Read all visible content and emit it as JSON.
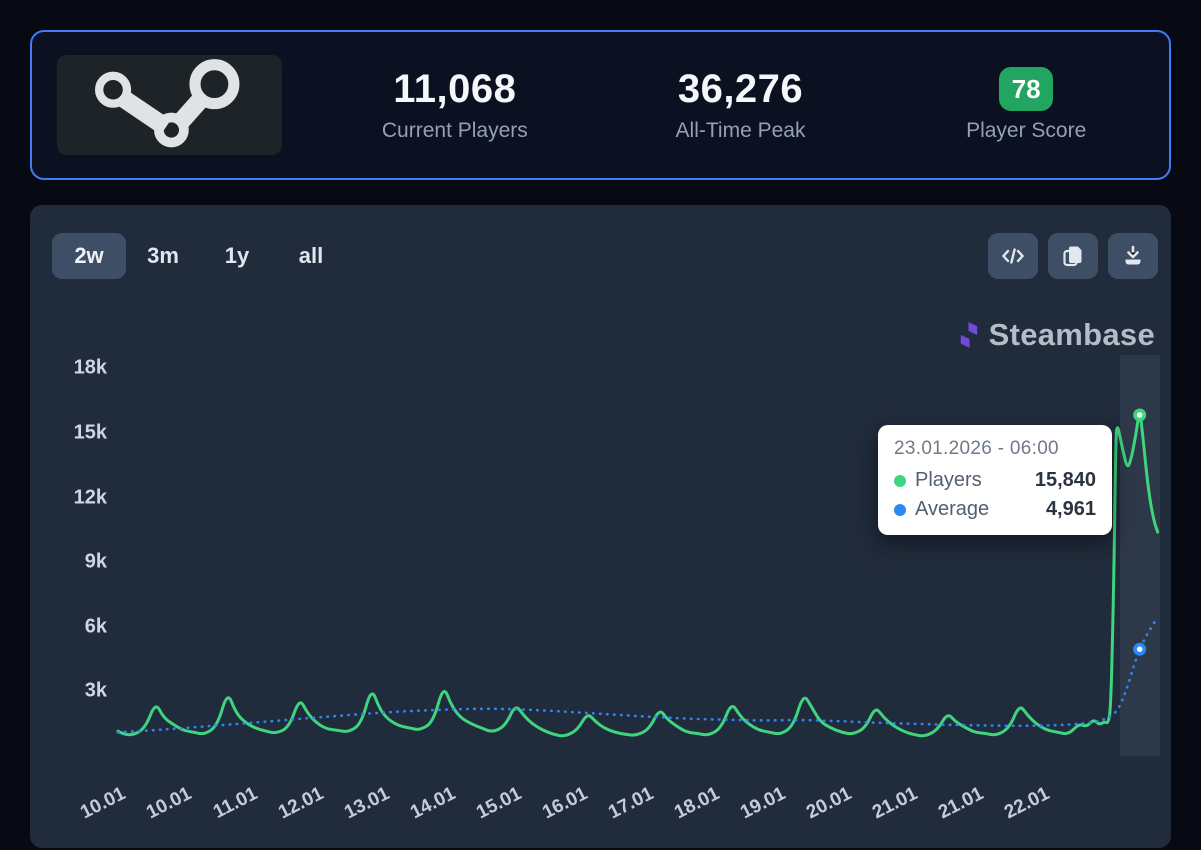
{
  "stats_card": {
    "current_players": {
      "value": "11,068",
      "label": "Current Players"
    },
    "all_time_peak": {
      "value": "36,276",
      "label": "All-Time Peak"
    },
    "player_score": {
      "value": "78",
      "label": "Player Score",
      "badge_color": "#21a561"
    }
  },
  "toolbar": {
    "tabs": [
      {
        "label": "2w",
        "active": true
      },
      {
        "label": "3m",
        "active": false
      },
      {
        "label": "1y",
        "active": false
      },
      {
        "label": "all",
        "active": false
      }
    ],
    "action_icons": [
      "embed-code",
      "copy",
      "download"
    ]
  },
  "watermark": {
    "brand": "Steambase",
    "logo_color": "#6f4bd8"
  },
  "tooltip": {
    "date": "23.01.2026 - 06:00",
    "rows": [
      {
        "label": "Players",
        "value": "15,840",
        "color": "#3fd47e"
      },
      {
        "label": "Average",
        "value": "4,961",
        "color": "#2f86f6"
      }
    ]
  },
  "chart_data": {
    "type": "line",
    "title": "",
    "xlabel": "",
    "ylabel": "",
    "grid": false,
    "legend_position": "tooltip",
    "x_ticks": [
      "10.01",
      "10.01",
      "11.01",
      "12.01",
      "13.01",
      "14.01",
      "15.01",
      "16.01",
      "17.01",
      "18.01",
      "19.01",
      "20.01",
      "21.01",
      "21.01",
      "22.01"
    ],
    "y_ticks": [
      "18k",
      "15k",
      "12k",
      "9k",
      "6k",
      "3k"
    ],
    "y_tick_values_k": [
      18,
      15,
      12,
      9,
      6,
      3
    ],
    "ylim_k": [
      0,
      19.5
    ],
    "series": [
      {
        "name": "Players",
        "color": "#3fd47e",
        "style": "solid",
        "points_day_k": [
          [
            0,
            1.15
          ],
          [
            0.05,
            1.05
          ],
          [
            0.2,
            0.95
          ],
          [
            0.38,
            1.3
          ],
          [
            0.52,
            2.5
          ],
          [
            0.63,
            1.8
          ],
          [
            0.75,
            1.5
          ],
          [
            0.9,
            1.2
          ],
          [
            1.05,
            1.1
          ],
          [
            1.2,
            1.0
          ],
          [
            1.38,
            1.4
          ],
          [
            1.52,
            3.0
          ],
          [
            1.63,
            2.05
          ],
          [
            1.75,
            1.6
          ],
          [
            1.9,
            1.3
          ],
          [
            2.05,
            1.15
          ],
          [
            2.2,
            1.05
          ],
          [
            2.38,
            1.35
          ],
          [
            2.52,
            2.7
          ],
          [
            2.63,
            2.0
          ],
          [
            2.75,
            1.55
          ],
          [
            2.9,
            1.25
          ],
          [
            3.05,
            1.2
          ],
          [
            3.2,
            1.1
          ],
          [
            3.38,
            1.5
          ],
          [
            3.52,
            3.2
          ],
          [
            3.63,
            2.2
          ],
          [
            3.75,
            1.7
          ],
          [
            3.9,
            1.4
          ],
          [
            4.05,
            1.3
          ],
          [
            4.2,
            1.2
          ],
          [
            4.38,
            1.6
          ],
          [
            4.52,
            3.3
          ],
          [
            4.63,
            2.35
          ],
          [
            4.75,
            1.8
          ],
          [
            4.9,
            1.5
          ],
          [
            5.05,
            1.3
          ],
          [
            5.2,
            1.1
          ],
          [
            5.38,
            1.4
          ],
          [
            5.52,
            2.4
          ],
          [
            5.63,
            1.9
          ],
          [
            5.75,
            1.5
          ],
          [
            5.9,
            1.2
          ],
          [
            6.05,
            1.0
          ],
          [
            6.2,
            0.9
          ],
          [
            6.38,
            1.2
          ],
          [
            6.52,
            2.0
          ],
          [
            6.63,
            1.6
          ],
          [
            6.75,
            1.3
          ],
          [
            6.9,
            1.1
          ],
          [
            7.05,
            1.0
          ],
          [
            7.2,
            0.95
          ],
          [
            7.38,
            1.25
          ],
          [
            7.52,
            2.2
          ],
          [
            7.63,
            1.7
          ],
          [
            7.75,
            1.4
          ],
          [
            7.9,
            1.1
          ],
          [
            8.05,
            1.05
          ],
          [
            8.2,
            0.95
          ],
          [
            8.38,
            1.3
          ],
          [
            8.52,
            2.5
          ],
          [
            8.63,
            1.9
          ],
          [
            8.75,
            1.5
          ],
          [
            8.9,
            1.2
          ],
          [
            9.05,
            1.1
          ],
          [
            9.2,
            1.0
          ],
          [
            9.38,
            1.4
          ],
          [
            9.52,
            2.9
          ],
          [
            9.63,
            2.3
          ],
          [
            9.75,
            1.6
          ],
          [
            9.9,
            1.3
          ],
          [
            10.05,
            1.1
          ],
          [
            10.2,
            1.0
          ],
          [
            10.38,
            1.3
          ],
          [
            10.52,
            2.3
          ],
          [
            10.63,
            1.8
          ],
          [
            10.75,
            1.45
          ],
          [
            10.9,
            1.15
          ],
          [
            11.05,
            1.0
          ],
          [
            11.2,
            0.9
          ],
          [
            11.38,
            1.2
          ],
          [
            11.52,
            2.0
          ],
          [
            11.63,
            1.6
          ],
          [
            11.75,
            1.35
          ],
          [
            11.9,
            1.1
          ],
          [
            12.05,
            1.05
          ],
          [
            12.2,
            0.95
          ],
          [
            12.38,
            1.3
          ],
          [
            12.52,
            2.4
          ],
          [
            12.63,
            1.9
          ],
          [
            12.75,
            1.5
          ],
          [
            12.9,
            1.2
          ],
          [
            13.05,
            1.1
          ],
          [
            13.2,
            1.0
          ],
          [
            13.35,
            1.5
          ],
          [
            13.45,
            1.35
          ],
          [
            13.55,
            1.7
          ],
          [
            13.63,
            1.45
          ],
          [
            13.7,
            1.6
          ],
          [
            13.75,
            1.5
          ],
          [
            13.79,
            2.2
          ],
          [
            13.83,
            8.0
          ],
          [
            13.86,
            15.0
          ],
          [
            13.88,
            15.3
          ],
          [
            13.9,
            15.1
          ],
          [
            13.95,
            14.3
          ],
          [
            14.02,
            13.3
          ],
          [
            14.08,
            13.9
          ],
          [
            14.14,
            15.0
          ],
          [
            14.17,
            15.7
          ],
          [
            14.19,
            15.84
          ],
          [
            14.21,
            15.6
          ],
          [
            14.26,
            14.0
          ],
          [
            14.31,
            12.4
          ],
          [
            14.38,
            11.0
          ],
          [
            14.44,
            10.4
          ]
        ]
      },
      {
        "name": "Average",
        "color": "#2f86f6",
        "style": "dotted",
        "points_day_k": [
          [
            0,
            1.1
          ],
          [
            0.5,
            1.2
          ],
          [
            1,
            1.32
          ],
          [
            1.5,
            1.45
          ],
          [
            2,
            1.58
          ],
          [
            2.5,
            1.72
          ],
          [
            3,
            1.85
          ],
          [
            3.5,
            1.98
          ],
          [
            4,
            2.08
          ],
          [
            4.5,
            2.15
          ],
          [
            5,
            2.2
          ],
          [
            5.5,
            2.18
          ],
          [
            6,
            2.1
          ],
          [
            6.5,
            2.0
          ],
          [
            7,
            1.9
          ],
          [
            7.5,
            1.8
          ],
          [
            8,
            1.72
          ],
          [
            8.5,
            1.68
          ],
          [
            9,
            1.65
          ],
          [
            9.5,
            1.68
          ],
          [
            10,
            1.62
          ],
          [
            10.5,
            1.55
          ],
          [
            11,
            1.5
          ],
          [
            11.5,
            1.45
          ],
          [
            12,
            1.42
          ],
          [
            12.5,
            1.4
          ],
          [
            13,
            1.42
          ],
          [
            13.3,
            1.48
          ],
          [
            13.6,
            1.58
          ],
          [
            13.8,
            1.85
          ],
          [
            13.9,
            2.2
          ],
          [
            14,
            3.0
          ],
          [
            14.1,
            4.1
          ],
          [
            14.19,
            4.961
          ],
          [
            14.3,
            5.7
          ],
          [
            14.44,
            6.45
          ]
        ]
      }
    ],
    "hover_point": {
      "t_days": 14.19,
      "players": 15840,
      "average": 4961,
      "date": "23.01.2026 - 06:00"
    }
  }
}
